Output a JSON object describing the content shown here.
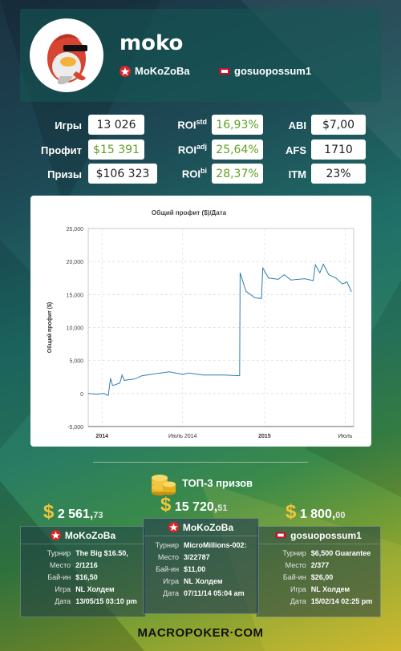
{
  "player": {
    "username": "moko",
    "nick_pokerstars": "MoKoZoBa",
    "nick_fulltilt": "gosuopossum1"
  },
  "stats": {
    "games_label": "Игры",
    "games": "13 026",
    "profit_label": "Профит",
    "profit": "$15 391",
    "prizes_label": "Призы",
    "prizes": "$106 323",
    "roi_std_label": "ROI",
    "roi_std_sup": "std",
    "roi_std": "16,93%",
    "roi_adj_label": "ROI",
    "roi_adj_sup": "adj",
    "roi_adj": "25,64%",
    "roi_bi_label": "ROI",
    "roi_bi_sup": "bi",
    "roi_bi": "28,37%",
    "abi_label": "ABI",
    "abi": "$7,00",
    "afs_label": "AFS",
    "afs": "1710",
    "itm_label": "ITM",
    "itm": "23%"
  },
  "chart_data": {
    "type": "line",
    "title": "Общий профит ($)/Дата",
    "xlabel": "",
    "ylabel": "Общий профит ($)",
    "ylim": [
      -5000,
      25000
    ],
    "yticks": [
      "25,000",
      "20,000",
      "15,000",
      "10,000",
      "5,000",
      "0",
      "-5,000"
    ],
    "xticks": [
      "2014",
      "Июль 2014",
      "2015",
      "Июль"
    ],
    "x_range": [
      "2013-12-01",
      "2015-07-20"
    ],
    "grid": true,
    "series": [
      {
        "color": "#2f7db0",
        "points": [
          [
            "2013-12-01",
            0
          ],
          [
            "2013-12-20",
            -100
          ],
          [
            "2014-01-05",
            0
          ],
          [
            "2014-01-15",
            -300
          ],
          [
            "2014-01-20",
            2300
          ],
          [
            "2014-01-25",
            1200
          ],
          [
            "2014-02-10",
            1600
          ],
          [
            "2014-02-15",
            2800
          ],
          [
            "2014-02-20",
            2000
          ],
          [
            "2014-03-15",
            2200
          ],
          [
            "2014-04-01",
            2700
          ],
          [
            "2014-05-01",
            3000
          ],
          [
            "2014-06-01",
            3300
          ],
          [
            "2014-07-01",
            2900
          ],
          [
            "2014-07-15",
            3100
          ],
          [
            "2014-08-15",
            2800
          ],
          [
            "2014-10-01",
            2800
          ],
          [
            "2014-11-06",
            2700
          ],
          [
            "2014-11-07",
            18300
          ],
          [
            "2014-11-20",
            15500
          ],
          [
            "2014-12-10",
            14500
          ],
          [
            "2014-12-25",
            14400
          ],
          [
            "2014-12-28",
            19000
          ],
          [
            "2015-01-10",
            17500
          ],
          [
            "2015-02-01",
            17300
          ],
          [
            "2015-02-14",
            18000
          ],
          [
            "2015-03-01",
            17200
          ],
          [
            "2015-04-01",
            17400
          ],
          [
            "2015-04-20",
            17100
          ],
          [
            "2015-04-25",
            19500
          ],
          [
            "2015-05-05",
            18300
          ],
          [
            "2015-05-13",
            19600
          ],
          [
            "2015-05-25",
            18000
          ],
          [
            "2015-06-10",
            17500
          ],
          [
            "2015-06-25",
            16600
          ],
          [
            "2015-07-05",
            16900
          ],
          [
            "2015-07-15",
            15400
          ]
        ]
      }
    ]
  },
  "top3": {
    "title": "ТОП-3 призов",
    "prizes": [
      {
        "currency": "$",
        "amount": "2 561,",
        "cents": "73",
        "nick": "MoKoZoBa",
        "room": "pokerstars",
        "rows": [
          {
            "k": "Турнир",
            "v": "The Big $16.50,"
          },
          {
            "k": "Место",
            "v": "2/1216"
          },
          {
            "k": "Бай-ин",
            "v": "$16,50"
          },
          {
            "k": "Игра",
            "v": "NL Холдем"
          },
          {
            "k": "Дата",
            "v": "13/05/15 03:10 pm"
          }
        ]
      },
      {
        "currency": "$",
        "amount": "15 720,",
        "cents": "51",
        "nick": "MoKoZoBa",
        "room": "pokerstars",
        "rows": [
          {
            "k": "Турнир",
            "v": "MicroMillions-002:"
          },
          {
            "k": "Место",
            "v": "3/22787"
          },
          {
            "k": "Бай-ин",
            "v": "$11,00"
          },
          {
            "k": "Игра",
            "v": "NL Холдем"
          },
          {
            "k": "Дата",
            "v": "07/11/14 05:04 am"
          }
        ]
      },
      {
        "currency": "$",
        "amount": "1 800,",
        "cents": "00",
        "nick": "gosuopossum1",
        "room": "fulltilt",
        "rows": [
          {
            "k": "Турнир",
            "v": "$6,500 Guarantee"
          },
          {
            "k": "Место",
            "v": "2/377"
          },
          {
            "k": "Бай-ин",
            "v": "$26,00"
          },
          {
            "k": "Игра",
            "v": "NL Холдем"
          },
          {
            "k": "Дата",
            "v": "15/02/14 02:25 pm"
          }
        ]
      }
    ]
  },
  "footer": {
    "brand": "MACROPOKER·COM"
  }
}
